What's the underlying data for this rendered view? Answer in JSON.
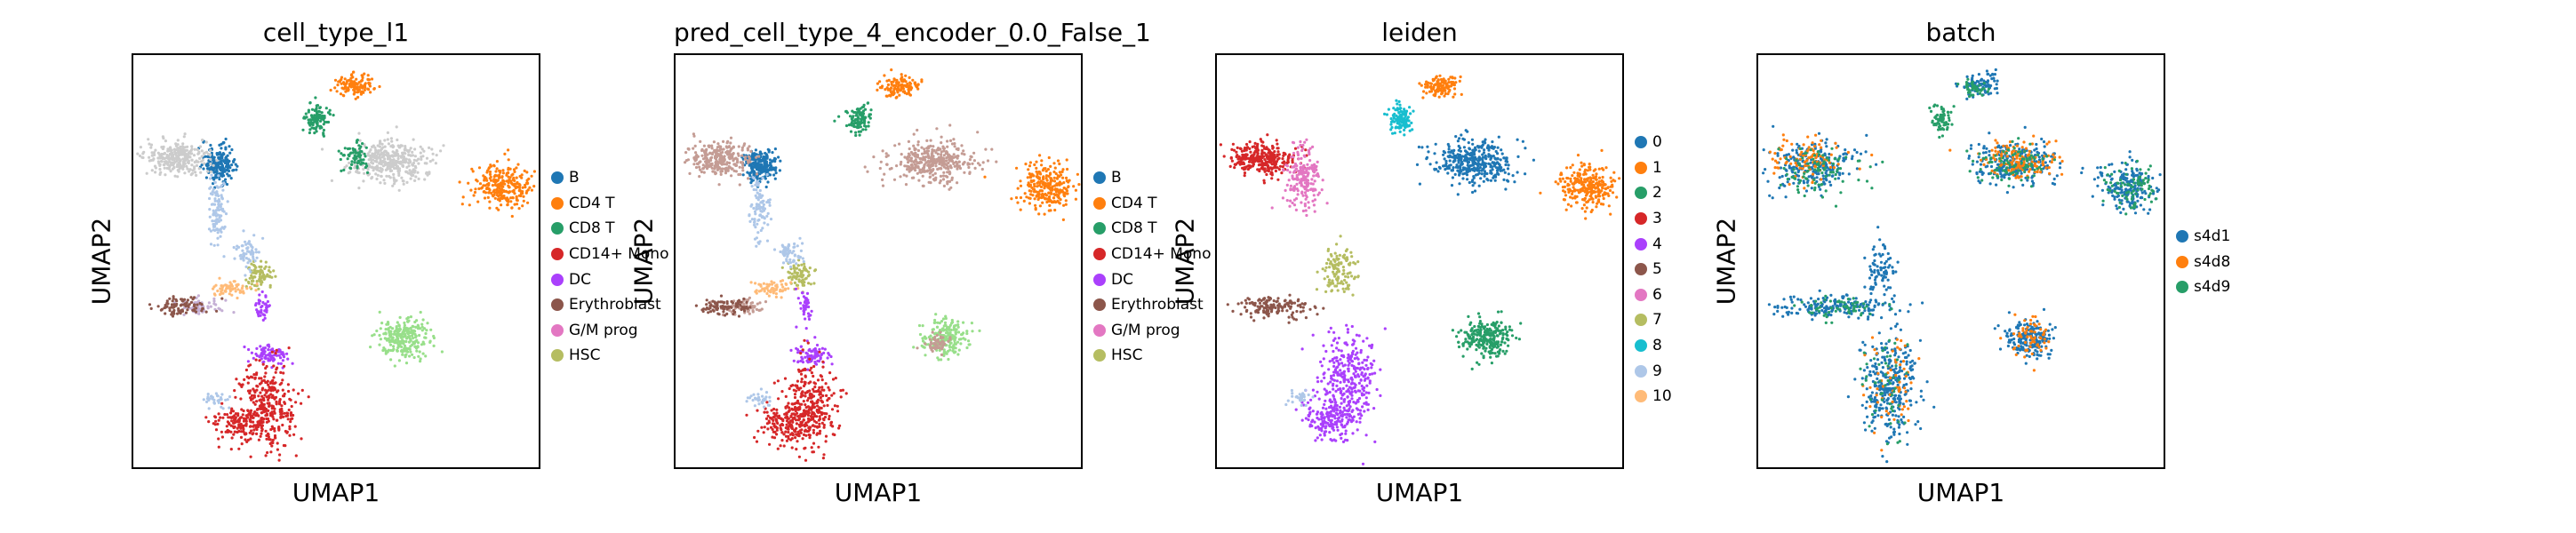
{
  "chart_data": [
    {
      "type": "scatter",
      "title": "cell_type_l1",
      "xlabel": "UMAP1",
      "ylabel": "UMAP2",
      "legend_placement": "right",
      "grid": false,
      "ticks": false,
      "legend": [
        {
          "label": "B",
          "color": "#1f77b4"
        },
        {
          "label": "CD4 T",
          "color": "#ff7f0e"
        },
        {
          "label": "CD8 T",
          "color": "#279e68"
        },
        {
          "label": "CD14+ Mono",
          "color": "#d62728"
        },
        {
          "label": "DC",
          "color": "#aa40fc"
        },
        {
          "label": "Erythroblast",
          "color": "#8c564b"
        },
        {
          "label": "G/M prog",
          "color": "#e377c2"
        },
        {
          "label": "HSC",
          "color": "#b5bd61"
        }
      ],
      "clusters": [
        {
          "color": "#1f77b4",
          "center": [
            5.5,
            2.0
          ],
          "spread": [
            0.5,
            0.6
          ],
          "count": 220
        },
        {
          "color": "#aec7e8",
          "center": [
            5.4,
            5.2
          ],
          "spread": [
            0.3,
            1.2
          ],
          "count": 100
        },
        {
          "color": "#cccccc",
          "center": [
            2.8,
            1.5
          ],
          "spread": [
            1.0,
            0.6
          ],
          "count": 280
        },
        {
          "color": "#ff7f0e",
          "center": [
            23.8,
            3.6
          ],
          "spread": [
            0.9,
            0.8
          ],
          "count": 260
        },
        {
          "color": "#ff7f0e",
          "center": [
            14.3,
            -3.8
          ],
          "spread": [
            0.6,
            0.4
          ],
          "count": 120
        },
        {
          "color": "#279e68",
          "center": [
            11.8,
            -1.4
          ],
          "spread": [
            0.4,
            0.5
          ],
          "count": 110
        },
        {
          "color": "#cccccc",
          "center": [
            16.5,
            1.8
          ],
          "spread": [
            1.4,
            0.8
          ],
          "count": 360
        },
        {
          "color": "#279e68",
          "center": [
            14.3,
            1.4
          ],
          "spread": [
            0.5,
            0.6
          ],
          "count": 70
        },
        {
          "color": "#98df8a",
          "center": [
            17.3,
            14.6
          ],
          "spread": [
            0.8,
            0.7
          ],
          "count": 250
        },
        {
          "color": "#b5bd61",
          "center": [
            8.0,
            10.0
          ],
          "spread": [
            0.4,
            0.5
          ],
          "count": 80
        },
        {
          "color": "#aec7e8",
          "center": [
            7.3,
            8.4
          ],
          "spread": [
            0.4,
            0.5
          ],
          "count": 60
        },
        {
          "color": "#ffbb78",
          "center": [
            6.2,
            11.0
          ],
          "spread": [
            0.6,
            0.3
          ],
          "count": 60
        },
        {
          "color": "#c5b0d5",
          "center": [
            4.3,
            12.3
          ],
          "spread": [
            0.7,
            0.3
          ],
          "count": 60
        },
        {
          "color": "#8c564b",
          "center": [
            3.0,
            12.3
          ],
          "spread": [
            0.9,
            0.3
          ],
          "count": 90
        },
        {
          "color": "#aa40fc",
          "center": [
            8.3,
            12.3
          ],
          "spread": [
            0.2,
            0.6
          ],
          "count": 40
        },
        {
          "color": "#aa40fc",
          "center": [
            8.8,
            15.8
          ],
          "spread": [
            0.6,
            0.4
          ],
          "count": 80
        },
        {
          "color": "#d62728",
          "center": [
            8.6,
            19.5
          ],
          "spread": [
            0.9,
            1.6
          ],
          "count": 300
        },
        {
          "color": "#d62728",
          "center": [
            7.0,
            20.8
          ],
          "spread": [
            0.9,
            0.7
          ],
          "count": 150
        },
        {
          "color": "#aec7e8",
          "center": [
            5.4,
            19.0
          ],
          "spread": [
            0.4,
            0.3
          ],
          "count": 30
        }
      ]
    },
    {
      "type": "scatter",
      "title": "pred_cell_type_4_encoder_0.0_False_1",
      "xlabel": "UMAP1",
      "ylabel": "UMAP2",
      "legend_placement": "right",
      "grid": false,
      "ticks": false,
      "legend": [
        {
          "label": "B",
          "color": "#1f77b4"
        },
        {
          "label": "CD4 T",
          "color": "#ff7f0e"
        },
        {
          "label": "CD8 T",
          "color": "#279e68"
        },
        {
          "label": "CD14+ Mono",
          "color": "#d62728"
        },
        {
          "label": "DC",
          "color": "#aa40fc"
        },
        {
          "label": "Erythroblast",
          "color": "#8c564b"
        },
        {
          "label": "G/M prog",
          "color": "#e377c2"
        },
        {
          "label": "HSC",
          "color": "#b5bd61"
        }
      ],
      "clusters": [
        {
          "color": "#1f77b4",
          "center": [
            5.5,
            2.0
          ],
          "spread": [
            0.5,
            0.6
          ],
          "count": 220
        },
        {
          "color": "#aec7e8",
          "center": [
            5.4,
            5.2
          ],
          "spread": [
            0.3,
            1.2
          ],
          "count": 100
        },
        {
          "color": "#c49c94",
          "center": [
            2.8,
            1.5
          ],
          "spread": [
            1.0,
            0.6
          ],
          "count": 280
        },
        {
          "color": "#ff7f0e",
          "center": [
            23.8,
            3.6
          ],
          "spread": [
            0.9,
            0.8
          ],
          "count": 260
        },
        {
          "color": "#ff7f0e",
          "center": [
            14.3,
            -3.8
          ],
          "spread": [
            0.6,
            0.4
          ],
          "count": 120
        },
        {
          "color": "#279e68",
          "center": [
            11.8,
            -1.4
          ],
          "spread": [
            0.4,
            0.5
          ],
          "count": 110
        },
        {
          "color": "#c49c94",
          "center": [
            16.5,
            1.8
          ],
          "spread": [
            1.4,
            0.8
          ],
          "count": 360
        },
        {
          "color": "#98df8a",
          "center": [
            17.3,
            14.6
          ],
          "spread": [
            0.8,
            0.7
          ],
          "count": 200
        },
        {
          "color": "#c49c94",
          "center": [
            16.9,
            15.0
          ],
          "spread": [
            0.4,
            0.4
          ],
          "count": 50
        },
        {
          "color": "#b5bd61",
          "center": [
            8.0,
            10.0
          ],
          "spread": [
            0.4,
            0.5
          ],
          "count": 80
        },
        {
          "color": "#aec7e8",
          "center": [
            7.3,
            8.4
          ],
          "spread": [
            0.4,
            0.5
          ],
          "count": 60
        },
        {
          "color": "#ffbb78",
          "center": [
            6.2,
            11.0
          ],
          "spread": [
            0.6,
            0.3
          ],
          "count": 60
        },
        {
          "color": "#c49c94",
          "center": [
            4.3,
            12.3
          ],
          "spread": [
            0.7,
            0.3
          ],
          "count": 60
        },
        {
          "color": "#8c564b",
          "center": [
            3.0,
            12.3
          ],
          "spread": [
            0.9,
            0.3
          ],
          "count": 90
        },
        {
          "color": "#aa40fc",
          "center": [
            8.3,
            12.3
          ],
          "spread": [
            0.2,
            0.6
          ],
          "count": 40
        },
        {
          "color": "#aa40fc",
          "center": [
            8.8,
            15.8
          ],
          "spread": [
            0.6,
            0.4
          ],
          "count": 80
        },
        {
          "color": "#d62728",
          "center": [
            8.6,
            19.5
          ],
          "spread": [
            0.9,
            1.6
          ],
          "count": 300
        },
        {
          "color": "#d62728",
          "center": [
            7.0,
            20.8
          ],
          "spread": [
            0.9,
            0.7
          ],
          "count": 150
        },
        {
          "color": "#aec7e8",
          "center": [
            5.4,
            19.0
          ],
          "spread": [
            0.4,
            0.3
          ],
          "count": 30
        }
      ]
    },
    {
      "type": "scatter",
      "title": "leiden",
      "xlabel": "UMAP1",
      "ylabel": "UMAP2",
      "legend_placement": "right",
      "grid": false,
      "ticks": false,
      "legend": [
        {
          "label": "0",
          "color": "#1f77b4"
        },
        {
          "label": "1",
          "color": "#ff7f0e"
        },
        {
          "label": "2",
          "color": "#279e68"
        },
        {
          "label": "3",
          "color": "#d62728"
        },
        {
          "label": "4",
          "color": "#aa40fc"
        },
        {
          "label": "5",
          "color": "#8c564b"
        },
        {
          "label": "6",
          "color": "#e377c2"
        },
        {
          "label": "7",
          "color": "#b5bd61"
        },
        {
          "label": "8",
          "color": "#17becf"
        },
        {
          "label": "9",
          "color": "#aec7e8"
        },
        {
          "label": "10",
          "color": "#ffbb78"
        }
      ],
      "clusters": [
        {
          "color": "#d62728",
          "center": [
            2.8,
            1.5
          ],
          "spread": [
            1.0,
            0.6
          ],
          "count": 300
        },
        {
          "color": "#e377c2",
          "center": [
            5.5,
            3.0
          ],
          "spread": [
            0.6,
            1.2
          ],
          "count": 200
        },
        {
          "color": "#1f77b4",
          "center": [
            16.5,
            1.8
          ],
          "spread": [
            1.4,
            0.8
          ],
          "count": 380
        },
        {
          "color": "#17becf",
          "center": [
            11.8,
            -1.4
          ],
          "spread": [
            0.4,
            0.5
          ],
          "count": 110
        },
        {
          "color": "#ff7f0e",
          "center": [
            23.8,
            3.6
          ],
          "spread": [
            0.9,
            0.8
          ],
          "count": 260
        },
        {
          "color": "#ff7f0e",
          "center": [
            14.3,
            -3.8
          ],
          "spread": [
            0.6,
            0.4
          ],
          "count": 120
        },
        {
          "color": "#279e68",
          "center": [
            17.3,
            14.6
          ],
          "spread": [
            0.8,
            0.7
          ],
          "count": 250
        },
        {
          "color": "#b5bd61",
          "center": [
            7.8,
            9.8
          ],
          "spread": [
            0.5,
            0.9
          ],
          "count": 120
        },
        {
          "color": "#8c564b",
          "center": [
            3.6,
            12.3
          ],
          "spread": [
            1.1,
            0.4
          ],
          "count": 150
        },
        {
          "color": "#aa40fc",
          "center": [
            8.4,
            17.5
          ],
          "spread": [
            0.9,
            1.8
          ],
          "count": 320
        },
        {
          "color": "#aa40fc",
          "center": [
            7.2,
            20.6
          ],
          "spread": [
            0.8,
            0.7
          ],
          "count": 160
        },
        {
          "color": "#aec7e8",
          "center": [
            5.4,
            19.0
          ],
          "spread": [
            0.4,
            0.3
          ],
          "count": 30
        }
      ]
    },
    {
      "type": "scatter",
      "title": "batch",
      "xlabel": "UMAP1",
      "ylabel": "UMAP2",
      "legend_placement": "right",
      "grid": false,
      "ticks": false,
      "legend": [
        {
          "label": "s4d1",
          "color": "#1f77b4"
        },
        {
          "label": "s4d8",
          "color": "#ff7f0e"
        },
        {
          "label": "s4d9",
          "color": "#279e68"
        }
      ],
      "clusters": [
        {
          "color": "#1f77b4",
          "center": [
            3.5,
            2.0
          ],
          "spread": [
            1.4,
            0.9
          ],
          "count": 240
        },
        {
          "color": "#ff7f0e",
          "center": [
            3.0,
            1.6
          ],
          "spread": [
            1.2,
            0.8
          ],
          "count": 100
        },
        {
          "color": "#279e68",
          "center": [
            4.0,
            2.4
          ],
          "spread": [
            1.3,
            0.9
          ],
          "count": 90
        },
        {
          "color": "#1f77b4",
          "center": [
            16.5,
            1.8
          ],
          "spread": [
            1.4,
            0.8
          ],
          "count": 250
        },
        {
          "color": "#ff7f0e",
          "center": [
            16.8,
            1.6
          ],
          "spread": [
            1.2,
            0.7
          ],
          "count": 140
        },
        {
          "color": "#279e68",
          "center": [
            16.2,
            2.0
          ],
          "spread": [
            1.2,
            0.8
          ],
          "count": 90
        },
        {
          "color": "#1f77b4",
          "center": [
            23.8,
            3.6
          ],
          "spread": [
            0.9,
            0.8
          ],
          "count": 200
        },
        {
          "color": "#279e68",
          "center": [
            23.8,
            3.6
          ],
          "spread": [
            0.9,
            0.8
          ],
          "count": 80
        },
        {
          "color": "#1f77b4",
          "center": [
            14.3,
            -3.8
          ],
          "spread": [
            0.6,
            0.4
          ],
          "count": 100
        },
        {
          "color": "#279e68",
          "center": [
            13.9,
            -3.6
          ],
          "spread": [
            0.4,
            0.3
          ],
          "count": 40
        },
        {
          "color": "#279e68",
          "center": [
            11.8,
            -1.4
          ],
          "spread": [
            0.4,
            0.5
          ],
          "count": 70
        },
        {
          "color": "#1f77b4",
          "center": [
            17.3,
            14.6
          ],
          "spread": [
            0.8,
            0.7
          ],
          "count": 200
        },
        {
          "color": "#ff7f0e",
          "center": [
            17.3,
            14.6
          ],
          "spread": [
            0.8,
            0.7
          ],
          "count": 60
        },
        {
          "color": "#1f77b4",
          "center": [
            4.8,
            12.3
          ],
          "spread": [
            1.8,
            0.4
          ],
          "count": 180
        },
        {
          "color": "#279e68",
          "center": [
            5.0,
            12.3
          ],
          "spread": [
            1.6,
            0.4
          ],
          "count": 60
        },
        {
          "color": "#1f77b4",
          "center": [
            7.8,
            9.8
          ],
          "spread": [
            0.5,
            1.0
          ],
          "count": 80
        },
        {
          "color": "#1f77b4",
          "center": [
            8.4,
            18.0
          ],
          "spread": [
            0.9,
            2.0
          ],
          "count": 320
        },
        {
          "color": "#ff7f0e",
          "center": [
            8.5,
            18.2
          ],
          "spread": [
            0.8,
            1.8
          ],
          "count": 60
        },
        {
          "color": "#279e68",
          "center": [
            8.2,
            18.0
          ],
          "spread": [
            0.8,
            1.8
          ],
          "count": 50
        }
      ]
    }
  ]
}
